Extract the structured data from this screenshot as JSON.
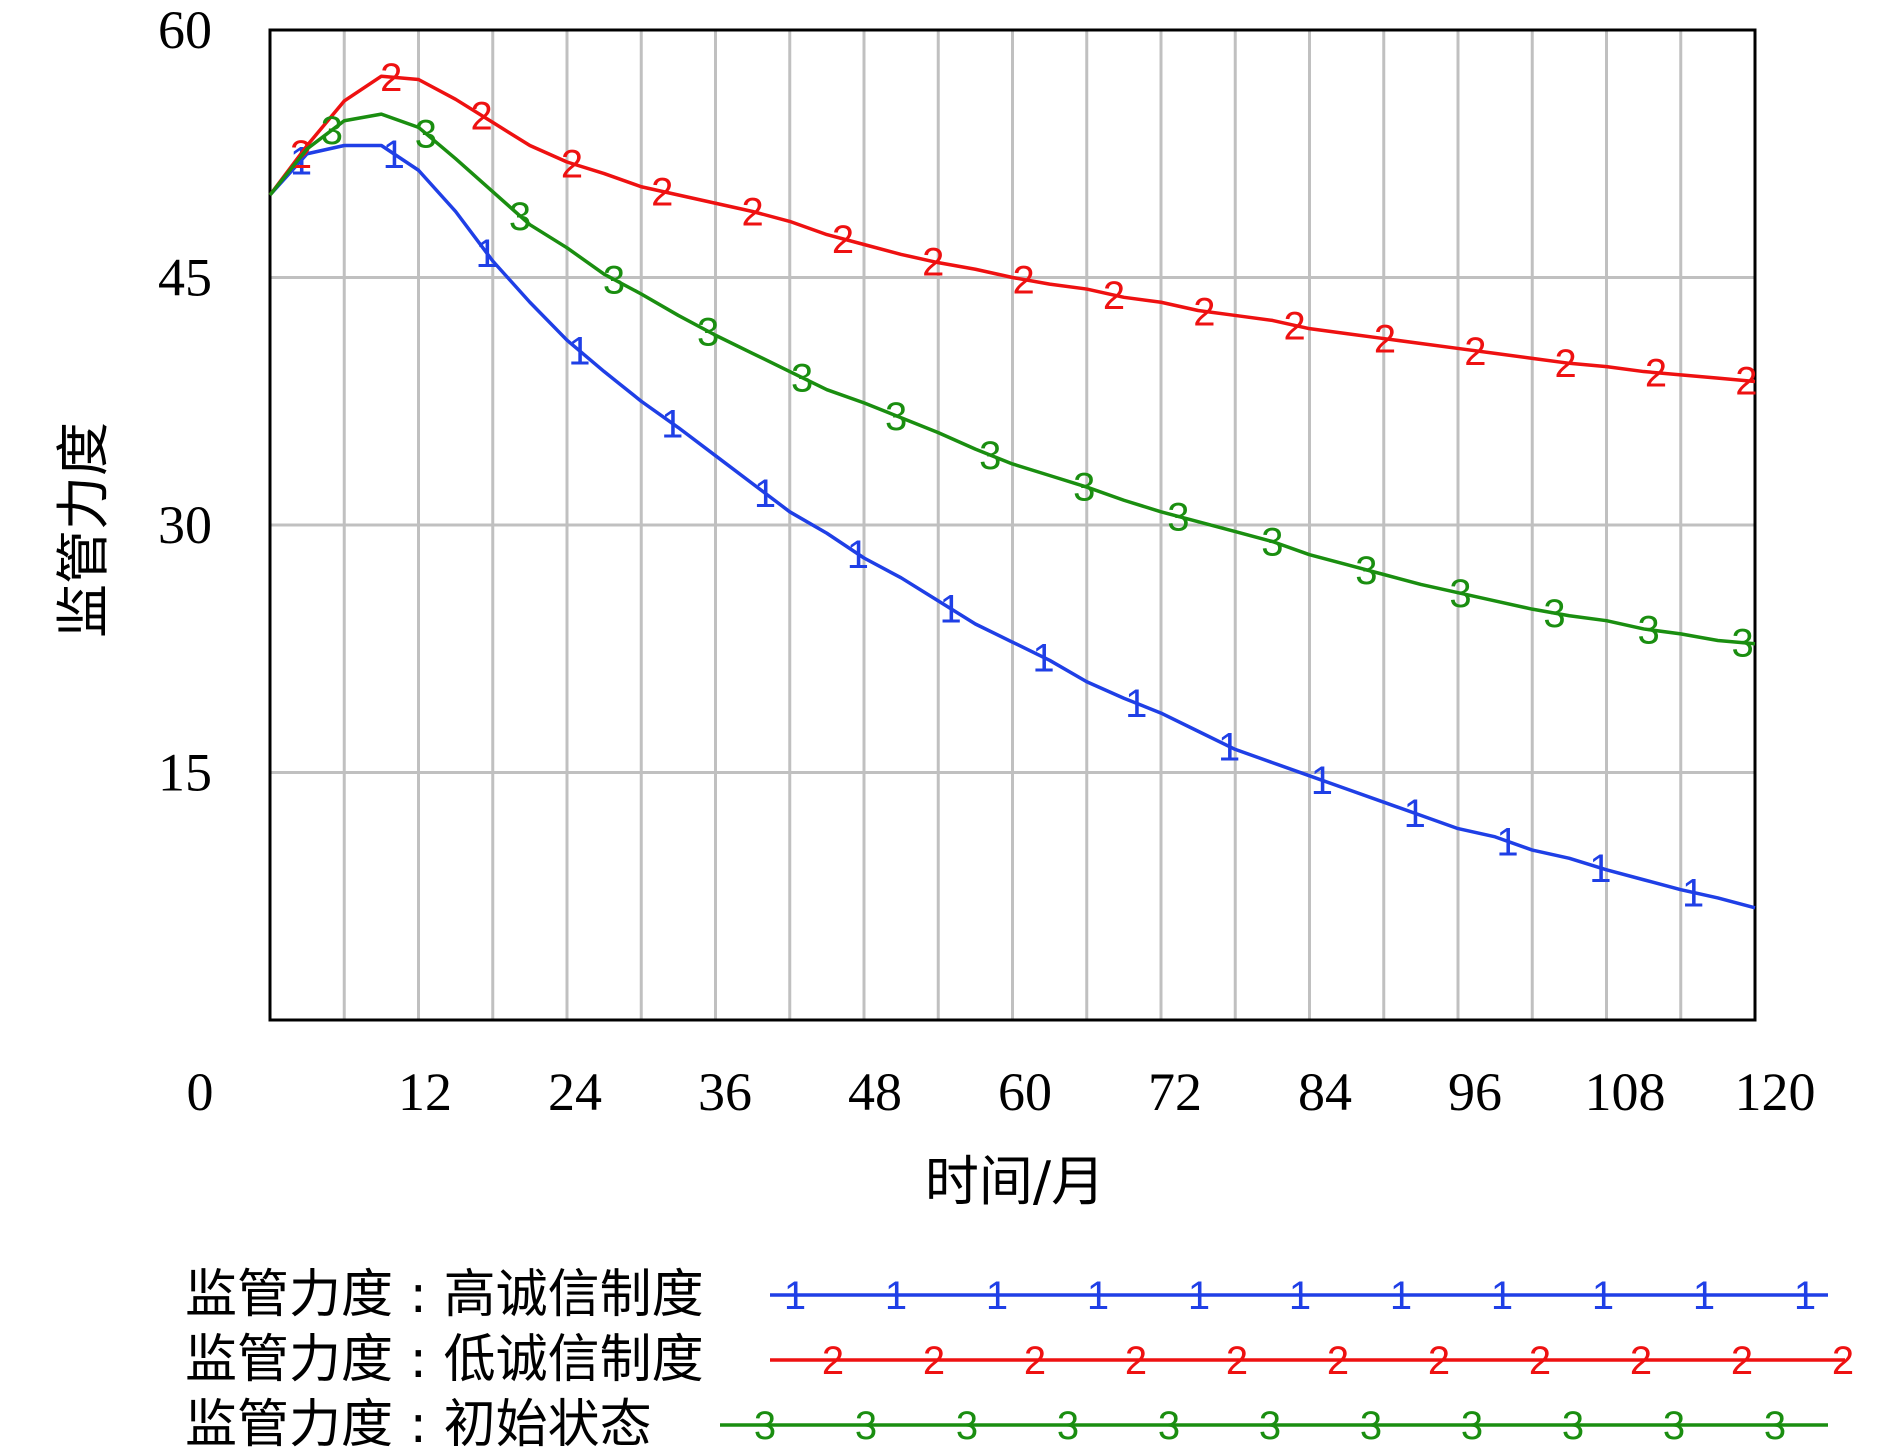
{
  "chart_data": {
    "type": "line",
    "xlabel": "时间/月",
    "ylabel": "监管力度",
    "xlim": [
      0,
      120
    ],
    "ylim": [
      0,
      60
    ],
    "x_ticks": [
      "0",
      "12",
      "24",
      "36",
      "48",
      "60",
      "72",
      "84",
      "96",
      "108",
      "120"
    ],
    "y_ticks": [
      "60",
      "45",
      "30",
      "15"
    ],
    "grid": true,
    "x_grid_step": 6,
    "y_grid_step": 15,
    "legend_position": "bottom",
    "x": [
      0,
      3,
      6,
      9,
      12,
      15,
      18,
      21,
      24,
      27,
      30,
      33,
      36,
      39,
      42,
      45,
      48,
      51,
      54,
      57,
      60,
      63,
      66,
      69,
      72,
      75,
      78,
      81,
      84,
      87,
      90,
      93,
      96,
      99,
      102,
      105,
      108,
      111,
      114,
      117,
      120
    ],
    "series": [
      {
        "name": "监管力度 : 高诚信制度",
        "marker": "1",
        "color": "#1f3fe6",
        "values": [
          50,
          52.5,
          53,
          53,
          51.5,
          49,
          46,
          43.5,
          41.2,
          39.3,
          37.5,
          35.9,
          34.2,
          32.5,
          30.8,
          29.5,
          28,
          26.8,
          25.4,
          24,
          22.9,
          21.8,
          20.5,
          19.5,
          18.6,
          17.5,
          16.4,
          15.6,
          14.8,
          14,
          13.2,
          12.4,
          11.6,
          11.1,
          10.3,
          9.8,
          9.1,
          8.5,
          7.9,
          7.4,
          6.8
        ]
      },
      {
        "name": "监管力度 : 低诚信制度",
        "marker": "2",
        "color": "#ee1111",
        "values": [
          50,
          53,
          55.7,
          57.2,
          57,
          55.8,
          54.4,
          53,
          52,
          51.3,
          50.5,
          50,
          49.5,
          49,
          48.4,
          47.6,
          47,
          46.4,
          45.9,
          45.5,
          45,
          44.6,
          44.3,
          43.8,
          43.5,
          43,
          42.7,
          42.4,
          41.9,
          41.6,
          41.3,
          41,
          40.7,
          40.4,
          40.1,
          39.8,
          39.6,
          39.3,
          39.1,
          38.9,
          38.7
        ]
      },
      {
        "name": "监管力度 : 初始状态",
        "marker": "3",
        "color": "#1a8e10",
        "values": [
          50,
          52.8,
          54.5,
          54.9,
          54.1,
          52.2,
          50.2,
          48.2,
          46.8,
          45.2,
          44,
          42.7,
          41.5,
          40.4,
          39.3,
          38.2,
          37.4,
          36.5,
          35.6,
          34.6,
          33.7,
          33,
          32.3,
          31.5,
          30.8,
          30.2,
          29.6,
          29,
          28.2,
          27.6,
          27,
          26.4,
          25.9,
          25.4,
          24.9,
          24.5,
          24.2,
          23.7,
          23.4,
          23,
          22.8
        ]
      }
    ]
  }
}
